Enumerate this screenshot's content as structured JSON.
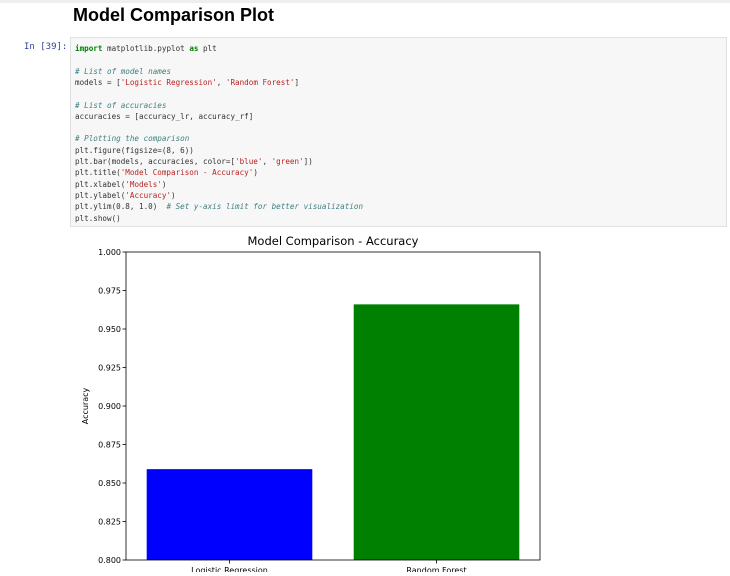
{
  "notebook": {
    "heading": "Model Comparison Plot",
    "prompt": "In [39]:",
    "code_lines": [
      {
        "parts": [
          {
            "t": "import",
            "c": "kw"
          },
          {
            "t": " matplotlib.pyplot ",
            "c": ""
          },
          {
            "t": "as",
            "c": "kw"
          },
          {
            "t": " plt",
            "c": ""
          }
        ]
      },
      {
        "parts": []
      },
      {
        "parts": [
          {
            "t": "# List of model names",
            "c": "comment"
          }
        ]
      },
      {
        "parts": [
          {
            "t": "models = [",
            "c": ""
          },
          {
            "t": "'Logistic Regression'",
            "c": "str"
          },
          {
            "t": ", ",
            "c": ""
          },
          {
            "t": "'Random Forest'",
            "c": "str"
          },
          {
            "t": "]",
            "c": ""
          }
        ]
      },
      {
        "parts": []
      },
      {
        "parts": [
          {
            "t": "# List of accuracies",
            "c": "comment"
          }
        ]
      },
      {
        "parts": [
          {
            "t": "accuracies = [accuracy_lr, accuracy_rf]",
            "c": ""
          }
        ]
      },
      {
        "parts": []
      },
      {
        "parts": [
          {
            "t": "# Plotting the comparison",
            "c": "comment"
          }
        ]
      },
      {
        "parts": [
          {
            "t": "plt.figure(figsize=(8, 6))",
            "c": ""
          }
        ]
      },
      {
        "parts": [
          {
            "t": "plt.bar(models, accuracies, color=[",
            "c": ""
          },
          {
            "t": "'blue'",
            "c": "str"
          },
          {
            "t": ", ",
            "c": ""
          },
          {
            "t": "'green'",
            "c": "str"
          },
          {
            "t": "])",
            "c": ""
          }
        ]
      },
      {
        "parts": [
          {
            "t": "plt.title(",
            "c": ""
          },
          {
            "t": "'Model Comparison - Accuracy'",
            "c": "str"
          },
          {
            "t": ")",
            "c": ""
          }
        ]
      },
      {
        "parts": [
          {
            "t": "plt.xlabel(",
            "c": ""
          },
          {
            "t": "'Models'",
            "c": "str"
          },
          {
            "t": ")",
            "c": ""
          }
        ]
      },
      {
        "parts": [
          {
            "t": "plt.ylabel(",
            "c": ""
          },
          {
            "t": "'Accuracy'",
            "c": "str"
          },
          {
            "t": ")",
            "c": ""
          }
        ]
      },
      {
        "parts": [
          {
            "t": "plt.ylim(0.8, 1.0)  ",
            "c": ""
          },
          {
            "t": "# Set y-axis limit for better visualization",
            "c": "comment"
          }
        ]
      },
      {
        "parts": [
          {
            "t": "plt.show()",
            "c": ""
          }
        ]
      }
    ]
  },
  "chart_data": {
    "type": "bar",
    "title": "Model Comparison - Accuracy",
    "xlabel": "",
    "ylabel": "Accuracy",
    "categories": [
      "Logistic Regression",
      "Random Forest"
    ],
    "values": [
      0.859,
      0.966
    ],
    "colors": [
      "#0000ff",
      "#008000"
    ],
    "ylim": [
      0.8,
      1.0
    ],
    "yticks": [
      0.8,
      0.825,
      0.85,
      0.875,
      0.9,
      0.925,
      0.95,
      0.975,
      1.0
    ],
    "ytick_labels": [
      "0.800",
      "0.825",
      "0.850",
      "0.875",
      "0.900",
      "0.925",
      "0.950",
      "0.975",
      "1.000"
    ],
    "grid": false,
    "legend": "none"
  }
}
